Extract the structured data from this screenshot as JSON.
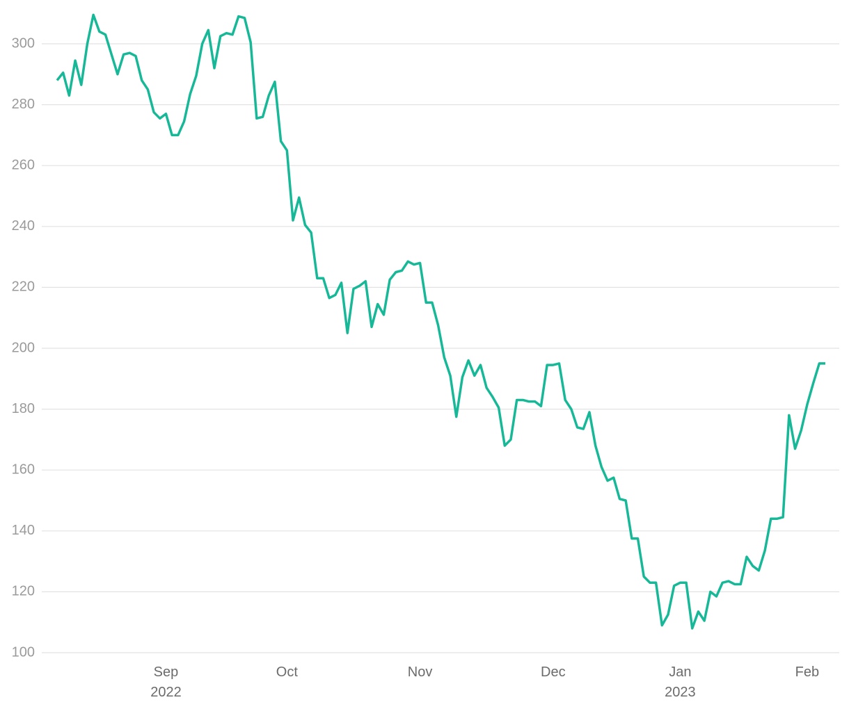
{
  "chart_data": {
    "type": "line",
    "categories": [
      null,
      null,
      null,
      null,
      null,
      null,
      null,
      null,
      null,
      null,
      null,
      null,
      null,
      null,
      null,
      null,
      null,
      null,
      "Sep 2022",
      null,
      null,
      null,
      null,
      null,
      null,
      null,
      null,
      null,
      null,
      null,
      null,
      null,
      null,
      null,
      null,
      null,
      null,
      null,
      "Oct",
      null,
      null,
      null,
      null,
      null,
      null,
      null,
      null,
      null,
      null,
      null,
      null,
      null,
      null,
      null,
      null,
      null,
      null,
      null,
      null,
      null,
      "Nov",
      null,
      null,
      null,
      null,
      null,
      null,
      null,
      null,
      null,
      null,
      null,
      null,
      null,
      null,
      null,
      null,
      null,
      null,
      null,
      null,
      null,
      "Dec",
      null,
      null,
      null,
      null,
      null,
      null,
      null,
      null,
      null,
      null,
      null,
      null,
      null,
      null,
      null,
      null,
      null,
      null,
      null,
      null,
      "Jan 2023",
      null,
      null,
      null,
      null,
      null,
      null,
      null,
      null,
      null,
      null,
      null,
      null,
      null,
      null,
      null,
      null,
      null,
      null,
      null,
      null,
      "Feb",
      null,
      null,
      null
    ],
    "values": [
      288,
      290.5,
      283,
      294.5,
      286.5,
      300,
      309.5,
      304,
      303,
      296.5,
      290,
      296.5,
      297,
      296,
      288,
      285,
      277.5,
      275.5,
      277,
      270,
      270,
      274.5,
      283.5,
      289.5,
      300,
      304.5,
      292,
      302.5,
      303.5,
      303,
      309,
      308.5,
      300.5,
      275.5,
      276,
      283,
      287.5,
      268,
      265,
      242,
      249.5,
      240.5,
      238,
      223,
      223,
      216.5,
      217.5,
      221.5,
      205,
      219.5,
      220.5,
      222,
      207,
      214.5,
      211,
      222.5,
      225,
      225.5,
      228.5,
      227.5,
      228,
      215,
      215,
      207.5,
      197,
      191,
      177.5,
      190.5,
      196,
      191,
      194.5,
      187,
      184,
      180.5,
      168,
      170,
      183,
      183,
      182.5,
      182.5,
      181,
      194.5,
      194.5,
      195,
      183,
      180,
      174,
      173.5,
      179,
      168,
      161,
      156.5,
      157.5,
      150.5,
      150,
      137.5,
      137.5,
      125,
      123,
      123,
      109,
      112.5,
      122,
      123,
      123,
      108,
      113.5,
      110.5,
      120,
      118.5,
      123,
      123.5,
      122.5,
      122.5,
      131.5,
      128.5,
      127,
      133.5,
      144,
      144,
      144.5,
      178,
      167,
      173,
      181.5,
      188.5,
      195,
      195
    ],
    "color": "#17b897",
    "ylim": [
      100,
      310
    ],
    "yticks": [
      100,
      120,
      140,
      160,
      180,
      200,
      220,
      240,
      260,
      280,
      300
    ],
    "grid": true
  }
}
